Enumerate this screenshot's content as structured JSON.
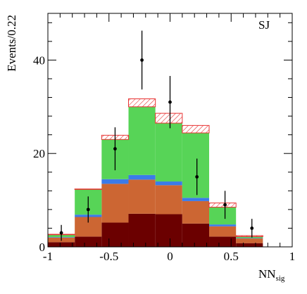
{
  "chart_data": {
    "type": "bar",
    "stacked": true,
    "annotation": "SJ",
    "xlabel": "NN",
    "xlabel_subscript": "sig",
    "ylabel": "Events/0.22",
    "xlim": [
      -1,
      1
    ],
    "ylim": [
      0,
      50
    ],
    "x_ticks": [
      "-1",
      "-0.5",
      "0",
      "0.5",
      "1"
    ],
    "x_tick_values": [
      -1,
      -0.5,
      0,
      0.5,
      1
    ],
    "y_ticks": [
      "0",
      "20",
      "40"
    ],
    "y_tick_values": [
      0,
      20,
      40
    ],
    "bin_edges": [
      -1.0,
      -0.78,
      -0.56,
      -0.34,
      -0.12,
      0.1,
      0.32,
      0.54,
      0.76,
      0.98
    ],
    "series": [
      {
        "color": "#6b0000",
        "values": [
          1.0,
          2.2,
          5.2,
          7.1,
          7.0,
          5.0,
          2.2,
          0.8,
          0.0
        ]
      },
      {
        "color": "#cc6633",
        "values": [
          1.0,
          4.2,
          8.3,
          7.3,
          6.2,
          4.8,
          2.2,
          1.0,
          0.0
        ]
      },
      {
        "color": "#3b7be8",
        "values": [
          0.1,
          0.5,
          1.0,
          1.0,
          0.8,
          0.7,
          0.4,
          0.1,
          0.0
        ]
      },
      {
        "color": "#57d457",
        "values": [
          0.5,
          5.4,
          8.5,
          14.6,
          12.5,
          13.9,
          3.7,
          0.3,
          0.0
        ]
      },
      {
        "color": "#e83232",
        "pattern": "hatched",
        "values": [
          0.1,
          0.1,
          0.9,
          1.7,
          2.1,
          1.6,
          0.9,
          0.2,
          0.0
        ]
      }
    ],
    "data_points": {
      "x": [
        -0.89,
        -0.67,
        -0.45,
        -0.23,
        0.0,
        0.22,
        0.45,
        0.67
      ],
      "y": [
        3.0,
        8.0,
        21.0,
        40.0,
        31.0,
        15.0,
        9.0,
        4.0
      ],
      "err": [
        1.7,
        2.8,
        4.6,
        6.3,
        5.6,
        3.9,
        3.0,
        2.0
      ]
    },
    "colors": {
      "frame": "#000000",
      "points": "#000000"
    }
  }
}
